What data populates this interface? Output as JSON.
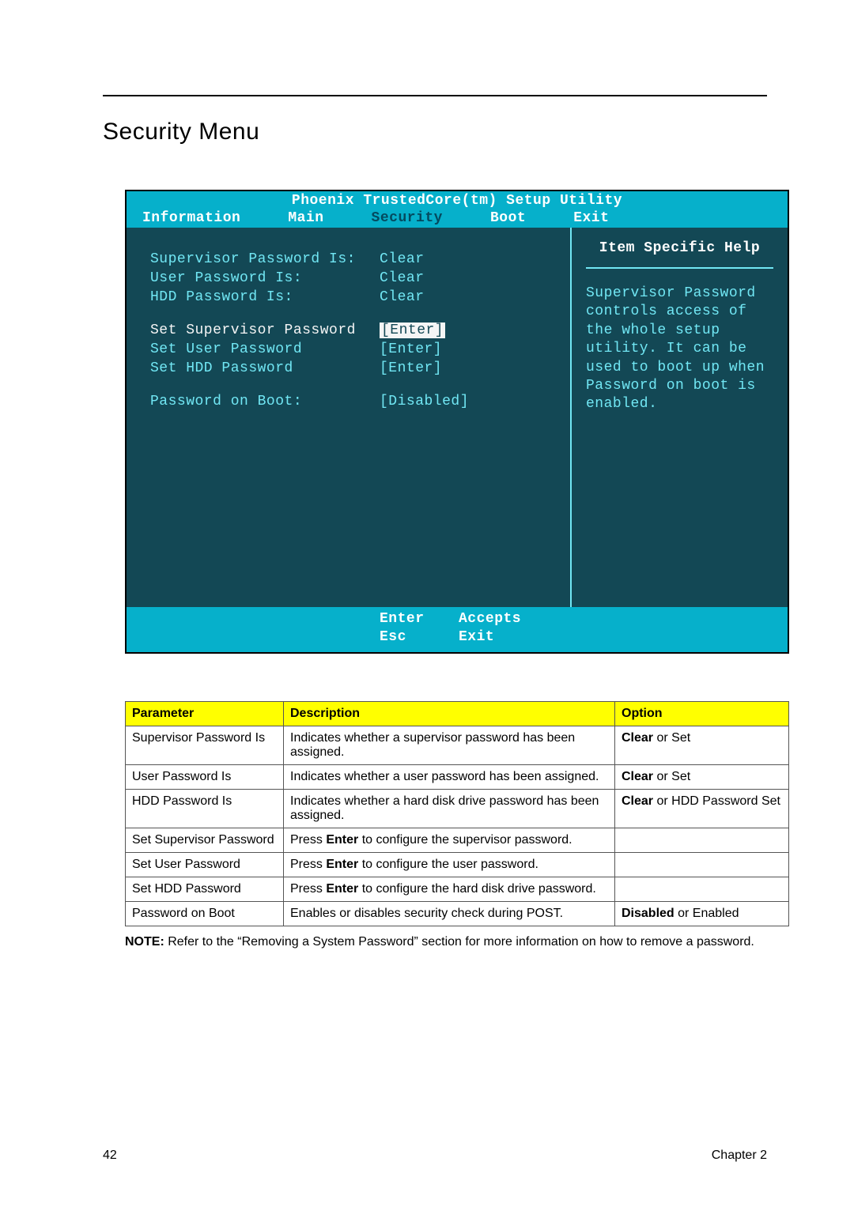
{
  "page": {
    "title": "Security Menu",
    "page_number": "42",
    "chapter": "Chapter 2"
  },
  "bios": {
    "title": "Phoenix TrustedCore(tm) Setup Utility",
    "tabs": {
      "information": "Information",
      "main": "Main",
      "security": "Security",
      "boot": "Boot",
      "exit": "Exit"
    },
    "rows": {
      "supervisor_is": {
        "label": "Supervisor Password Is:",
        "value": "Clear"
      },
      "user_is": {
        "label": "User Password Is:",
        "value": "Clear"
      },
      "hdd_is": {
        "label": "HDD Password Is:",
        "value": "Clear"
      },
      "set_supervisor": {
        "label": "Set Supervisor Password",
        "value": "[Enter]"
      },
      "set_user": {
        "label": "Set User Password",
        "value": "[Enter]"
      },
      "set_hdd": {
        "label": "Set HDD Password",
        "value": "[Enter]"
      },
      "pw_on_boot": {
        "label": "Password on Boot:",
        "value": "[Disabled]"
      }
    },
    "help": {
      "title": "Item Specific Help",
      "body": "Supervisor Password controls access of the whole setup utility. It can be used to boot up when Password on boot is enabled."
    },
    "footer": {
      "enter_key": "Enter",
      "enter_action": "Accepts",
      "esc_key": "Esc",
      "esc_action": "Exit"
    },
    "colors": {
      "bar_bg": "#06b0cb",
      "body_bg": "#134855",
      "accent": "#71e7f4",
      "white": "#ffffff"
    }
  },
  "table": {
    "headers": {
      "parameter": "Parameter",
      "description": "Description",
      "option": "Option"
    },
    "rows": [
      {
        "param": "Supervisor Password Is",
        "desc_pre": "Indicates whether a supervisor password has been assigned.",
        "opt_bold": "Clear",
        "opt_rest": " or Set"
      },
      {
        "param": "User Password Is",
        "desc_pre": "Indicates whether a user password has been assigned.",
        "opt_bold": "Clear",
        "opt_rest": " or Set"
      },
      {
        "param": "HDD Password Is",
        "desc_pre": "Indicates whether a hard disk drive password has been assigned.",
        "opt_bold": "Clear",
        "opt_rest": " or HDD Password Set"
      },
      {
        "param": "Set Supervisor Password",
        "desc_pre": "Press ",
        "desc_bold": "Enter",
        "desc_post": " to configure the supervisor password.",
        "opt_bold": "",
        "opt_rest": ""
      },
      {
        "param": "Set User Password",
        "desc_pre": "Press ",
        "desc_bold": "Enter",
        "desc_post": " to configure the user password.",
        "opt_bold": "",
        "opt_rest": ""
      },
      {
        "param": "Set HDD Password",
        "desc_pre": "Press ",
        "desc_bold": "Enter",
        "desc_post": " to configure the hard disk drive password.",
        "opt_bold": "",
        "opt_rest": ""
      },
      {
        "param": "Password on Boot",
        "desc_pre": "Enables or disables security check during POST.",
        "opt_bold": "Disabled",
        "opt_rest": " or Enabled"
      }
    ]
  },
  "note": {
    "label": "NOTE:",
    "text": " Refer to the “Removing a System Password” section for more information on how to remove a password."
  }
}
